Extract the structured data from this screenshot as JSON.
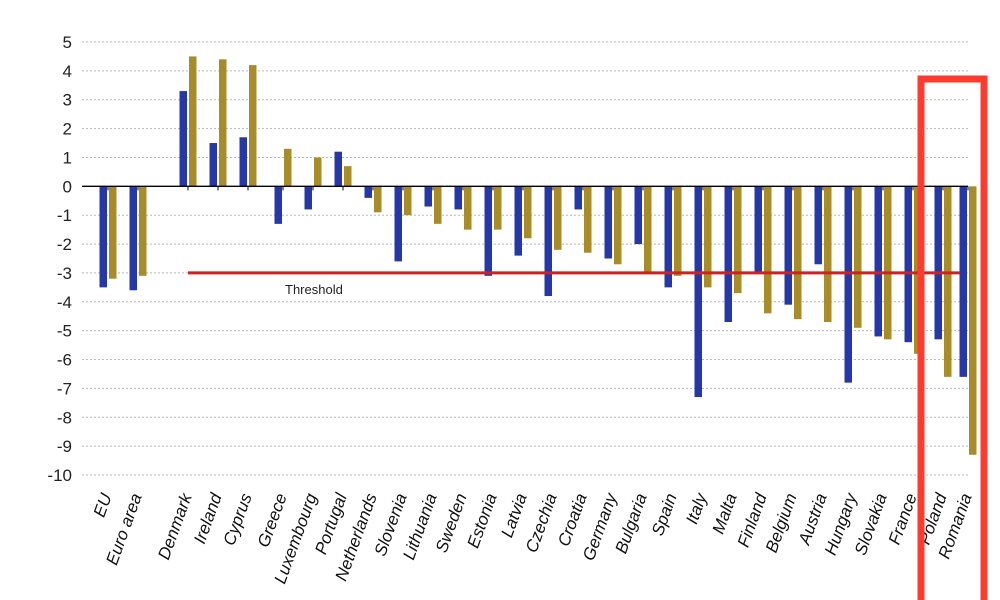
{
  "caption": "",
  "chart_data": {
    "type": "bar",
    "title": "",
    "xlabel": "",
    "ylabel": "",
    "ylim": [
      -10,
      5
    ],
    "yticks": [
      5,
      4,
      3,
      2,
      1,
      0,
      -1,
      -2,
      -3,
      -4,
      -5,
      -6,
      -7,
      -8,
      -9,
      -10
    ],
    "grid": true,
    "categories": [
      "EU",
      "Euro area",
      "Denmark",
      "Ireland",
      "Cyprus",
      "Greece",
      "Luxembourg",
      "Portugal",
      "Netherlands",
      "Slovenia",
      "Lithuania",
      "Sweden",
      "Estonia",
      "Latvia",
      "Czechia",
      "Croatia",
      "Germany",
      "Bulgaria",
      "Spain",
      "Italy",
      "Malta",
      "Finland",
      "Belgium",
      "Austria",
      "Hungary",
      "Slovakia",
      "France",
      "Poland",
      "Romania"
    ],
    "series": [
      {
        "color": "#2637a8",
        "values": [
          -3.5,
          -3.6,
          3.3,
          1.5,
          1.7,
          -1.3,
          -0.8,
          1.2,
          -0.4,
          -2.6,
          -0.7,
          -0.8,
          -3.1,
          -2.4,
          -3.8,
          -0.8,
          -2.5,
          -2.0,
          -3.5,
          -7.3,
          -4.7,
          -3.0,
          -4.1,
          -2.7,
          -6.8,
          -5.2,
          -5.4,
          -5.3,
          -6.6
        ]
      },
      {
        "color": "#a88c2a",
        "values": [
          -3.2,
          -3.1,
          4.5,
          4.4,
          4.2,
          1.3,
          1.0,
          0.7,
          -0.9,
          -1.0,
          -1.3,
          -1.5,
          -1.5,
          -1.8,
          -2.2,
          -2.3,
          -2.7,
          -3.0,
          -3.1,
          -3.5,
          -3.7,
          -4.4,
          -4.6,
          -4.7,
          -4.9,
          -5.3,
          -5.8,
          -6.6,
          -9.3
        ]
      }
    ],
    "reference_line": {
      "label": "Threshold",
      "value": -3,
      "color": "#cc2222",
      "from_category": "Denmark"
    },
    "highlight": {
      "color": "#ff3b2f",
      "categories": [
        "Poland",
        "Romania"
      ]
    }
  }
}
